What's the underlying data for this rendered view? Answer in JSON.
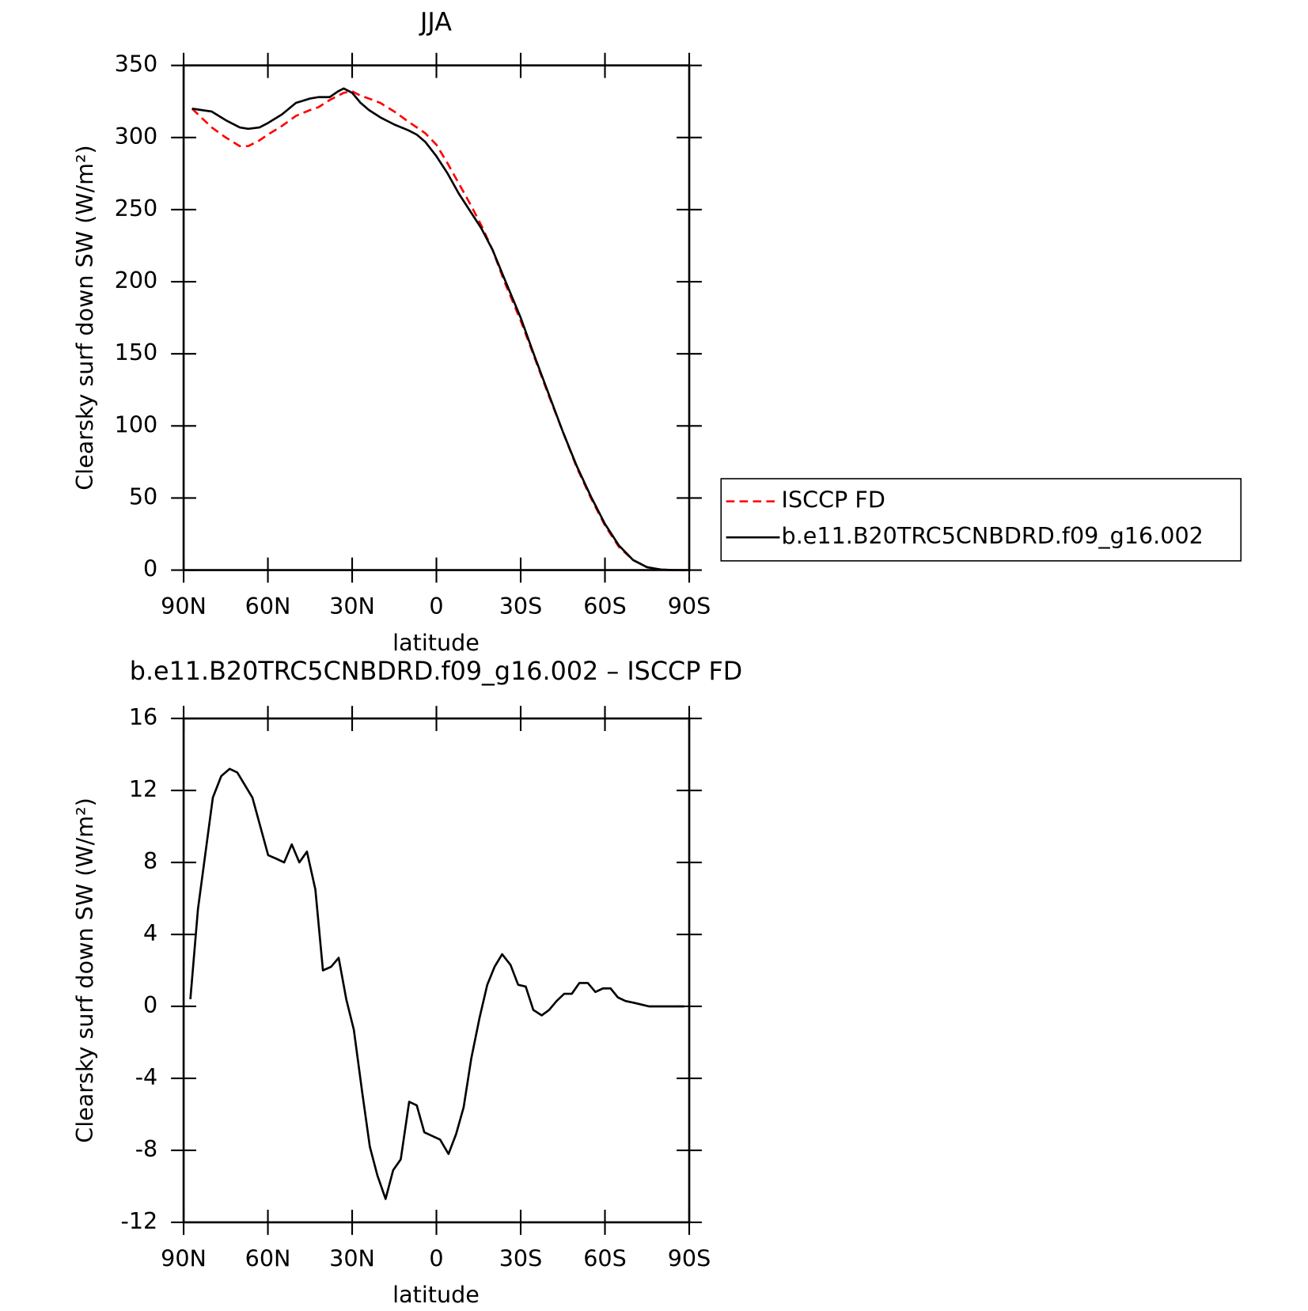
{
  "chart_data": [
    {
      "type": "line",
      "title": "JJA",
      "xlabel": "latitude",
      "ylabel": "Clearsky surf down SW (W/m²)",
      "x": [
        87,
        80,
        75,
        70,
        67,
        63,
        60,
        55,
        50,
        45,
        42,
        38,
        35,
        33,
        30,
        27,
        24,
        20,
        15,
        10,
        7,
        4,
        0,
        -4,
        -8,
        -12,
        -16,
        -20,
        -24,
        -30,
        -35,
        -40,
        -45,
        -50,
        -55,
        -60,
        -65,
        -70,
        -75,
        -80,
        -85,
        -89
      ],
      "series": [
        {
          "name": "ISCCP FD",
          "color": "#ff0000",
          "linestyle": "dashed",
          "values": [
            320,
            307,
            300,
            294,
            294,
            298,
            302,
            308,
            315,
            319,
            321,
            326,
            329,
            331,
            332,
            329,
            327,
            324,
            318,
            311,
            307,
            303,
            295,
            282,
            268,
            254,
            239,
            222,
            201,
            173,
            147,
            121,
            96,
            71,
            50,
            31,
            16,
            7,
            2,
            0.3,
            0,
            0
          ]
        },
        {
          "name": "b.e11.B20TRC5CNBDRD.f09_g16.002",
          "color": "#000000",
          "linestyle": "solid",
          "values": [
            320,
            318,
            312,
            307,
            306,
            307,
            310,
            316,
            324,
            327,
            328,
            328,
            332,
            334,
            331,
            324,
            319,
            314,
            309,
            305,
            302,
            297,
            287,
            275,
            261,
            249,
            237,
            222,
            203,
            175,
            148,
            122,
            96,
            72,
            51,
            32,
            17,
            7,
            2,
            0.3,
            0,
            0
          ]
        }
      ],
      "xlim": [
        90,
        -90
      ],
      "xticks": [
        {
          "value": 90,
          "label": "90N"
        },
        {
          "value": 60,
          "label": "60N"
        },
        {
          "value": 30,
          "label": "30N"
        },
        0,
        {
          "value": -30,
          "label": "30S"
        },
        {
          "value": -60,
          "label": "60S"
        },
        {
          "value": -90,
          "label": "90S"
        }
      ],
      "ylim": [
        0,
        350
      ],
      "yticks": [
        0,
        50,
        100,
        150,
        200,
        250,
        300,
        350
      ],
      "legend": "right"
    },
    {
      "type": "line",
      "title": "b.e11.B20TRC5CNBDRD.f09_g16.002 – ISCCP FD",
      "xlabel": "latitude",
      "ylabel": "Clearsky surf down SW (W/m²)",
      "x": [
        87.6,
        84.9,
        79.6,
        76.6,
        73.6,
        70.9,
        65.5,
        59.9,
        56.9,
        54.2,
        51.5,
        48.8,
        46.1,
        43.1,
        40.4,
        37.5,
        34.8,
        32.1,
        29.4,
        26.4,
        23.7,
        21.0,
        18.1,
        15.4,
        12.7,
        9.7,
        7.0,
        4.3,
        -1.3,
        -4.3,
        -7.0,
        -9.7,
        -12.4,
        -15.4,
        -18.1,
        -20.7,
        -23.4,
        -26.4,
        -29.1,
        -31.8,
        -34.5,
        -37.5,
        -40.1,
        -42.8,
        -45.5,
        -48.2,
        -50.9,
        -53.9,
        -56.6,
        -59.3,
        -62.0,
        -64.6,
        -67.3,
        -70.3,
        -73.0,
        -75.7,
        -78.4,
        -81.0,
        -86.4,
        -88.2
      ],
      "series": [
        {
          "color": "#000000",
          "linestyle": "solid",
          "values": [
            0.4,
            5.4,
            11.6,
            12.8,
            13.2,
            13.0,
            11.6,
            8.4,
            8.2,
            8.0,
            9.0,
            8.0,
            8.6,
            6.5,
            2.0,
            2.2,
            2.7,
            0.4,
            -1.3,
            -4.8,
            -7.8,
            -9.4,
            -10.7,
            -9.1,
            -8.5,
            -5.3,
            -5.5,
            -7.0,
            -7.4,
            -8.2,
            -7.1,
            -5.6,
            -2.9,
            -0.6,
            1.2,
            2.2,
            2.9,
            2.3,
            1.2,
            1.1,
            -0.2,
            -0.5,
            -0.2,
            0.3,
            0.7,
            0.7,
            1.3,
            1.3,
            0.8,
            1.0,
            1.0,
            0.5,
            0.3,
            0.2,
            0.1,
            0,
            0,
            0,
            0,
            0
          ]
        }
      ],
      "xlim": [
        90,
        -90
      ],
      "xticks": [
        {
          "value": 90,
          "label": "90N"
        },
        {
          "value": 60,
          "label": "60N"
        },
        {
          "value": 30,
          "label": "30N"
        },
        0,
        {
          "value": -30,
          "label": "30S"
        },
        {
          "value": -60,
          "label": "60S"
        },
        {
          "value": -90,
          "label": "90S"
        }
      ],
      "ylim": [
        -12,
        16
      ],
      "yticks": [
        -12,
        -8,
        -4,
        0,
        4,
        8,
        12,
        16
      ]
    }
  ]
}
